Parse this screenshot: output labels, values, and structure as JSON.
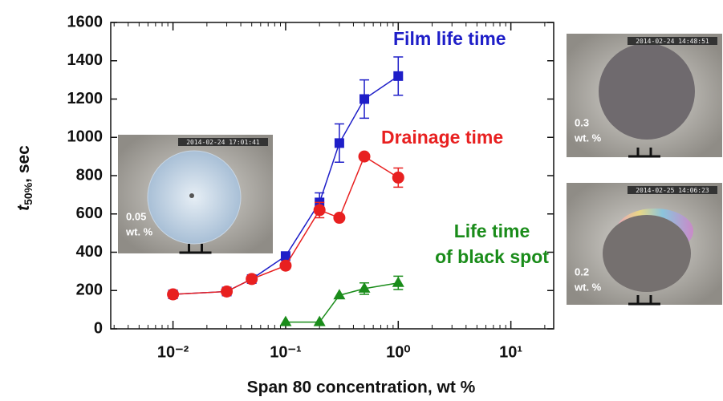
{
  "chart_data": {
    "type": "line",
    "log_x": true,
    "xlabel": "Span 80 concentration, wt %",
    "ylabel": {
      "italic": "t",
      "sub": "50%",
      "rest": ", sec"
    },
    "xlim": [
      0.0028,
      24
    ],
    "ylim": [
      0,
      1600
    ],
    "xticks": [
      {
        "value": 0.01,
        "label": "10⁻²"
      },
      {
        "value": 0.1,
        "label": "10⁻¹"
      },
      {
        "value": 1,
        "label": "10⁰"
      },
      {
        "value": 10,
        "label": "10¹"
      }
    ],
    "yticks": [
      0,
      200,
      400,
      600,
      800,
      1000,
      1200,
      1400,
      1600
    ],
    "series": [
      {
        "name": "Film life time",
        "color": "#1e1ec8",
        "marker": "square",
        "x": [
          0.01,
          0.03,
          0.05,
          0.1,
          0.2,
          0.3,
          0.5,
          1
        ],
        "values": [
          180,
          195,
          260,
          380,
          660,
          970,
          1200,
          1320
        ],
        "errors": [
          null,
          null,
          null,
          null,
          50,
          100,
          100,
          100
        ]
      },
      {
        "name": "Drainage time",
        "color": "#e82020",
        "marker": "circle",
        "x": [
          0.01,
          0.03,
          0.05,
          0.1,
          0.2,
          0.3,
          0.5,
          1
        ],
        "values": [
          180,
          195,
          260,
          330,
          620,
          580,
          900,
          790
        ],
        "errors": [
          null,
          null,
          null,
          null,
          40,
          null,
          null,
          50
        ]
      },
      {
        "name": "Life time of black spot",
        "color": "#1a8c1a",
        "marker": "triangle",
        "x": [
          0.1,
          0.2,
          0.3,
          0.5,
          1
        ],
        "values": [
          35,
          35,
          175,
          210,
          240
        ],
        "errors": [
          null,
          null,
          null,
          30,
          35
        ]
      }
    ],
    "annotations": [
      {
        "lines": [
          "Film life time"
        ],
        "color": "#1e1ec8"
      },
      {
        "lines": [
          "Drainage time"
        ],
        "color": "#e82020"
      },
      {
        "lines": [
          "Life time",
          "of black spot"
        ],
        "color": "#1a8c1a"
      }
    ],
    "insets": [
      {
        "timestamp": "2014-02-24 17:01:41",
        "lines": [
          "0.05",
          "wt. %"
        ]
      },
      {
        "timestamp": "2014-02-24 14:48:51",
        "lines": [
          "0.3",
          "wt. %"
        ]
      },
      {
        "timestamp": "2014-02-25 14:06:23",
        "lines": [
          "0.2",
          "wt. %"
        ]
      }
    ]
  }
}
